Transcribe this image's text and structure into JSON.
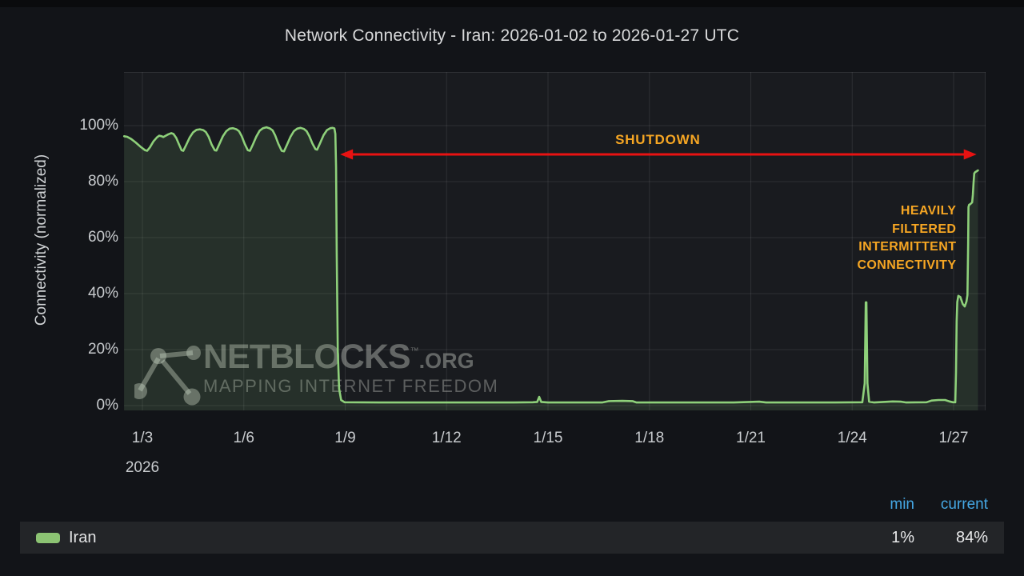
{
  "title": "Network Connectivity - Iran: 2026-01-02 to 2026-01-27 UTC",
  "watermark": {
    "brand": "NETBLOCKS",
    "tm": "™",
    "suffix": ".ORG",
    "tagline": "MAPPING INTERNET FREEDOM"
  },
  "legend": {
    "min_header": "min",
    "current_header": "current",
    "series_label": "Iran",
    "min_value": "1%",
    "current_value": "84%",
    "swatch_color": "#8cc373"
  },
  "annotations": {
    "shutdown": {
      "text": "SHUTDOWN",
      "center_day": 18.25,
      "pct": 95.0,
      "color": "#f6a623"
    },
    "arrow": {
      "from_day": 8.85,
      "to_day": 27.68,
      "pct": 89.7,
      "color": "#e81212"
    },
    "filtered": {
      "lines": [
        "HEAVILY",
        "FILTERED",
        "INTERMITTENT",
        "CONNECTIVITY"
      ],
      "right_day": 27.08,
      "top_pct": 72.5,
      "color": "#f6a623"
    }
  },
  "chart_data": {
    "type": "line",
    "title": "Network Connectivity - Iran: 2026-01-02 to 2026-01-27 UTC",
    "xlabel": "",
    "ylabel": "Connectivity (normalized)",
    "y_ticks_pct": [
      0,
      20,
      40,
      60,
      80,
      100
    ],
    "y_tick_labels": [
      "0%",
      "20%",
      "40%",
      "60%",
      "80%",
      "100%"
    ],
    "ylim_pct": [
      0,
      119
    ],
    "x_tick_days": [
      3,
      6,
      9,
      12,
      15,
      18,
      21,
      24,
      27
    ],
    "x_tick_labels": [
      "1/3",
      "1/6",
      "1/9",
      "1/12",
      "1/15",
      "1/18",
      "1/21",
      "1/24",
      "1/27"
    ],
    "x_year_label": "2026",
    "x_range_days": [
      2.46,
      27.95
    ],
    "grid": true,
    "legend_position": "bottom",
    "series": [
      {
        "name": "Iran",
        "color": "#8ed07a",
        "fill_color": "rgba(142,208,122,0.12)",
        "min": "1%",
        "current": "84%",
        "points": [
          [
            2.46,
            96.2
          ],
          [
            2.55,
            96.0
          ],
          [
            2.67,
            95.2
          ],
          [
            2.8,
            94.0
          ],
          [
            2.95,
            92.4
          ],
          [
            3.08,
            91.2
          ],
          [
            3.14,
            91.0
          ],
          [
            3.22,
            92.2
          ],
          [
            3.33,
            94.4
          ],
          [
            3.43,
            95.8
          ],
          [
            3.5,
            96.4
          ],
          [
            3.57,
            96.2
          ],
          [
            3.62,
            95.9
          ],
          [
            3.68,
            96.3
          ],
          [
            3.77,
            96.9
          ],
          [
            3.86,
            97.3
          ],
          [
            3.92,
            97.0
          ],
          [
            4.0,
            95.6
          ],
          [
            4.08,
            93.4
          ],
          [
            4.16,
            91.2
          ],
          [
            4.21,
            91.0
          ],
          [
            4.3,
            93.2
          ],
          [
            4.4,
            95.8
          ],
          [
            4.5,
            97.6
          ],
          [
            4.6,
            98.5
          ],
          [
            4.7,
            98.7
          ],
          [
            4.8,
            98.4
          ],
          [
            4.88,
            97.7
          ],
          [
            4.96,
            96.0
          ],
          [
            5.05,
            93.2
          ],
          [
            5.14,
            91.2
          ],
          [
            5.19,
            91.1
          ],
          [
            5.28,
            93.5
          ],
          [
            5.38,
            96.2
          ],
          [
            5.48,
            98.0
          ],
          [
            5.58,
            98.9
          ],
          [
            5.68,
            99.1
          ],
          [
            5.78,
            98.7
          ],
          [
            5.86,
            98.0
          ],
          [
            5.94,
            96.2
          ],
          [
            6.03,
            93.4
          ],
          [
            6.12,
            91.2
          ],
          [
            6.18,
            91.0
          ],
          [
            6.27,
            93.3
          ],
          [
            6.37,
            96.1
          ],
          [
            6.47,
            98.2
          ],
          [
            6.57,
            99.1
          ],
          [
            6.67,
            99.4
          ],
          [
            6.77,
            99.0
          ],
          [
            6.85,
            98.3
          ],
          [
            6.93,
            96.5
          ],
          [
            7.02,
            93.6
          ],
          [
            7.12,
            91.0
          ],
          [
            7.19,
            90.8
          ],
          [
            7.28,
            93.2
          ],
          [
            7.38,
            96.0
          ],
          [
            7.48,
            98.0
          ],
          [
            7.58,
            98.9
          ],
          [
            7.68,
            99.2
          ],
          [
            7.78,
            98.8
          ],
          [
            7.86,
            98.0
          ],
          [
            7.94,
            96.2
          ],
          [
            8.03,
            93.6
          ],
          [
            8.12,
            91.6
          ],
          [
            8.17,
            91.4
          ],
          [
            8.26,
            93.8
          ],
          [
            8.36,
            96.6
          ],
          [
            8.46,
            98.4
          ],
          [
            8.56,
            99.1
          ],
          [
            8.63,
            99.2
          ],
          [
            8.68,
            99.0
          ],
          [
            8.71,
            97.0
          ],
          [
            8.73,
            85.0
          ],
          [
            8.75,
            55.0
          ],
          [
            8.78,
            20.0
          ],
          [
            8.82,
            6.0
          ],
          [
            8.88,
            2.0
          ],
          [
            8.98,
            1.2
          ],
          [
            10.0,
            1.1
          ],
          [
            12.0,
            1.1
          ],
          [
            14.0,
            1.1
          ],
          [
            14.55,
            1.2
          ],
          [
            14.68,
            1.3
          ],
          [
            14.74,
            3.1
          ],
          [
            14.8,
            1.3
          ],
          [
            15.0,
            1.1
          ],
          [
            16.6,
            1.1
          ],
          [
            16.8,
            1.6
          ],
          [
            17.2,
            1.7
          ],
          [
            17.5,
            1.6
          ],
          [
            17.62,
            1.1
          ],
          [
            19.0,
            1.1
          ],
          [
            20.5,
            1.1
          ],
          [
            21.25,
            1.4
          ],
          [
            21.45,
            1.1
          ],
          [
            23.5,
            1.1
          ],
          [
            24.3,
            1.2
          ],
          [
            24.37,
            8.0
          ],
          [
            24.4,
            36.9
          ],
          [
            24.42,
            36.9
          ],
          [
            24.45,
            8.0
          ],
          [
            24.5,
            1.4
          ],
          [
            24.65,
            1.1
          ],
          [
            25.2,
            1.5
          ],
          [
            25.45,
            1.4
          ],
          [
            25.6,
            1.1
          ],
          [
            26.2,
            1.2
          ],
          [
            26.35,
            1.8
          ],
          [
            26.55,
            2.0
          ],
          [
            26.75,
            2.0
          ],
          [
            26.88,
            1.5
          ],
          [
            26.98,
            1.2
          ],
          [
            27.05,
            1.2
          ],
          [
            27.07,
            12.0
          ],
          [
            27.09,
            30.0
          ],
          [
            27.11,
            37.0
          ],
          [
            27.14,
            39.2
          ],
          [
            27.2,
            38.8
          ],
          [
            27.27,
            36.3
          ],
          [
            27.33,
            35.4
          ],
          [
            27.38,
            37.2
          ],
          [
            27.41,
            39.5
          ],
          [
            27.43,
            58.0
          ],
          [
            27.44,
            70.9
          ],
          [
            27.46,
            71.7
          ],
          [
            27.5,
            72.0
          ],
          [
            27.55,
            72.6
          ],
          [
            27.57,
            75.4
          ],
          [
            27.59,
            79.4
          ],
          [
            27.61,
            82.9
          ],
          [
            27.64,
            83.4
          ],
          [
            27.68,
            83.7
          ],
          [
            27.72,
            84.0
          ]
        ]
      }
    ]
  }
}
